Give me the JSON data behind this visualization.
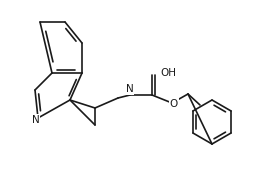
{
  "bg": "#ffffff",
  "lc": "#1a1a1a",
  "lw": 1.2,
  "atoms": {
    "N_label": "N",
    "O_label": "O",
    "OH_label": "OH"
  }
}
